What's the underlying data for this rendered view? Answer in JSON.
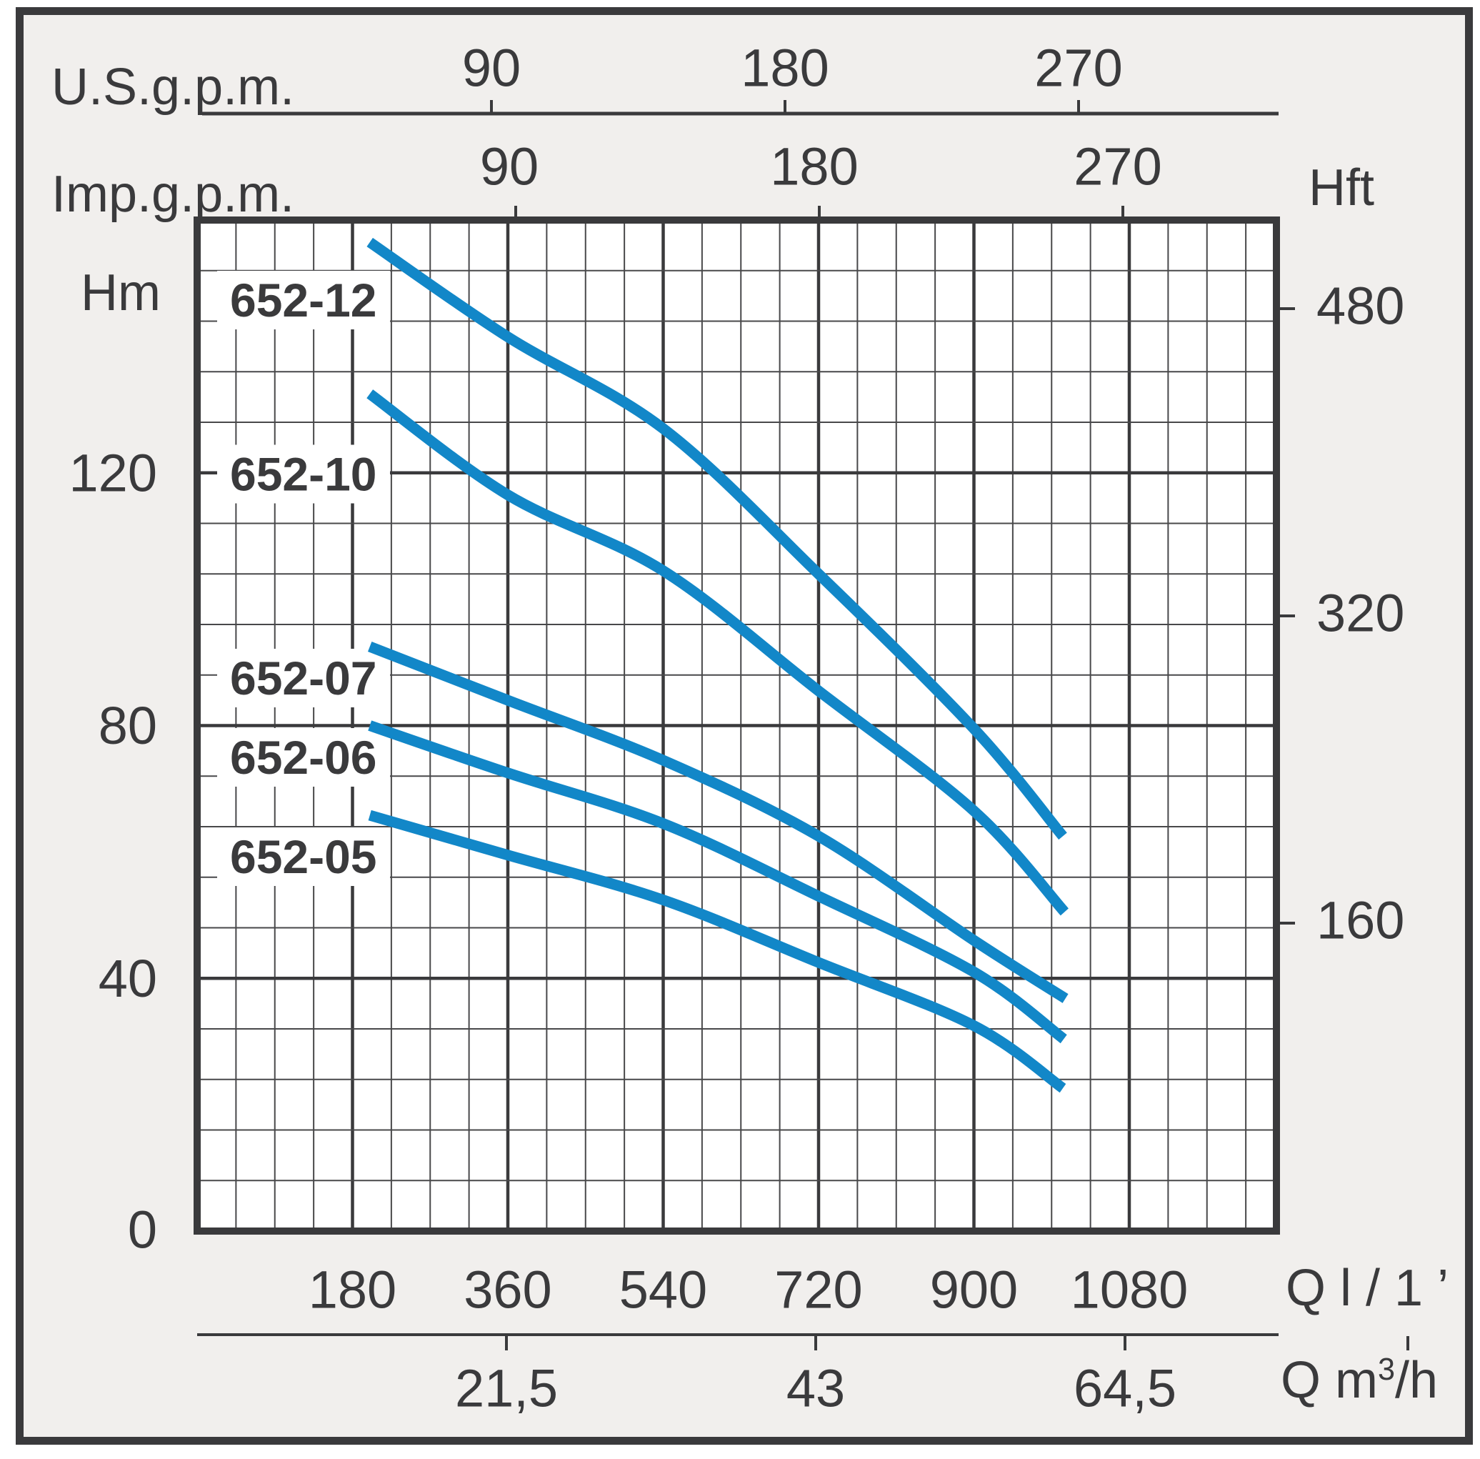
{
  "chart_data": {
    "type": "line",
    "description": "Pump performance curves: head (Hm / Hft) versus flow rate (Q l/1', Q m3/h, U.S.g.p.m., Imp.g.p.m.)",
    "grid": "minor and major grid on, white plot background",
    "legend_position": "labels at left end of each curve",
    "curve_color": "#1287c8",
    "axes": {
      "x_bottom_primary": {
        "label": "Q l/1’",
        "ticks": [
          180,
          360,
          540,
          720,
          900,
          1080
        ],
        "range_l_min": [
          0,
          1250
        ]
      },
      "x_bottom_secondary": {
        "label_prefix": "Q m",
        "label_sup": "3",
        "label_suffix": "/h",
        "ticks": [
          "21,5",
          "43",
          "64,5"
        ]
      },
      "x_top_first": {
        "label": "U.S.g.p.m.",
        "ticks": [
          90,
          180,
          270
        ]
      },
      "x_top_second": {
        "label": "Imp.g.p.m.",
        "ticks": [
          90,
          180,
          270
        ]
      },
      "y_left": {
        "label": "Hm",
        "ticks": [
          0,
          40,
          80,
          120
        ],
        "range": [
          0,
          160
        ]
      },
      "y_right": {
        "label": "Hft",
        "ticks": [
          160,
          320,
          480
        ]
      }
    },
    "series": [
      {
        "name": "652-12",
        "points_q_lmin_vs_hm": [
          [
            200,
            156.5
          ],
          [
            360,
            141.5
          ],
          [
            540,
            127
          ],
          [
            720,
            104
          ],
          [
            900,
            79.5
          ],
          [
            1003,
            62.5
          ]
        ]
      },
      {
        "name": "652-10",
        "points_q_lmin_vs_hm": [
          [
            200,
            132.5
          ],
          [
            360,
            116.5
          ],
          [
            540,
            104.5
          ],
          [
            720,
            85.5
          ],
          [
            900,
            66.5
          ],
          [
            1005,
            50.5
          ]
        ]
      },
      {
        "name": "652-07",
        "points_q_lmin_vs_hm": [
          [
            200,
            92.5
          ],
          [
            360,
            84
          ],
          [
            540,
            74.5
          ],
          [
            720,
            62.5
          ],
          [
            900,
            46
          ],
          [
            1006,
            36.8
          ]
        ]
      },
      {
        "name": "652-06",
        "points_q_lmin_vs_hm": [
          [
            200,
            80
          ],
          [
            360,
            72.5
          ],
          [
            540,
            64.5
          ],
          [
            720,
            53
          ],
          [
            900,
            41
          ],
          [
            1004,
            30.4
          ]
        ]
      },
      {
        "name": "652-05",
        "points_q_lmin_vs_hm": [
          [
            200,
            65.8
          ],
          [
            360,
            59.5
          ],
          [
            540,
            52.4
          ],
          [
            720,
            42.5
          ],
          [
            900,
            32.5
          ],
          [
            1003,
            22.6
          ]
        ]
      }
    ]
  },
  "labels": {
    "us_gpm": "U.S.g.p.m.",
    "imp_gpm": "Imp.g.p.m.",
    "hm": "Hm",
    "hft": "Hft",
    "q_l": "Q l / 1 ’",
    "q_m3h_prefix": "Q m",
    "q_m3h_sup": "3",
    "q_m3h_suffix": "/h"
  }
}
